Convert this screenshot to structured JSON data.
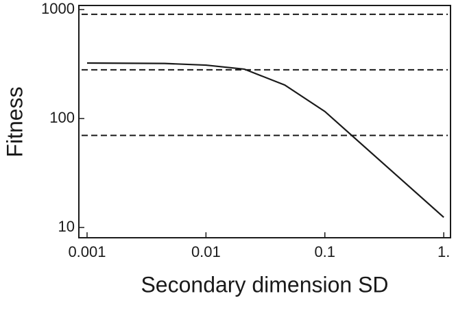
{
  "chart_data": {
    "type": "line",
    "xlabel": "Secondary dimension SD",
    "ylabel": "Fitness",
    "x": [
      0.001,
      0.0045,
      0.01,
      0.021,
      0.046,
      0.1,
      1
    ],
    "values": [
      323,
      320,
      309,
      284,
      203,
      116,
      12.4
    ],
    "color": "#1a1a1a",
    "reference_lines": [
      904,
      280,
      70
    ],
    "xlog": true,
    "ylog": true,
    "xlim": [
      0.000853,
      1.14
    ],
    "ylim": [
      8.05,
      1090
    ],
    "xticks": [
      0.001,
      0.01,
      0.1,
      {
        "value": 1,
        "label": "1."
      }
    ],
    "yticks": [
      10,
      100,
      1000
    ]
  }
}
